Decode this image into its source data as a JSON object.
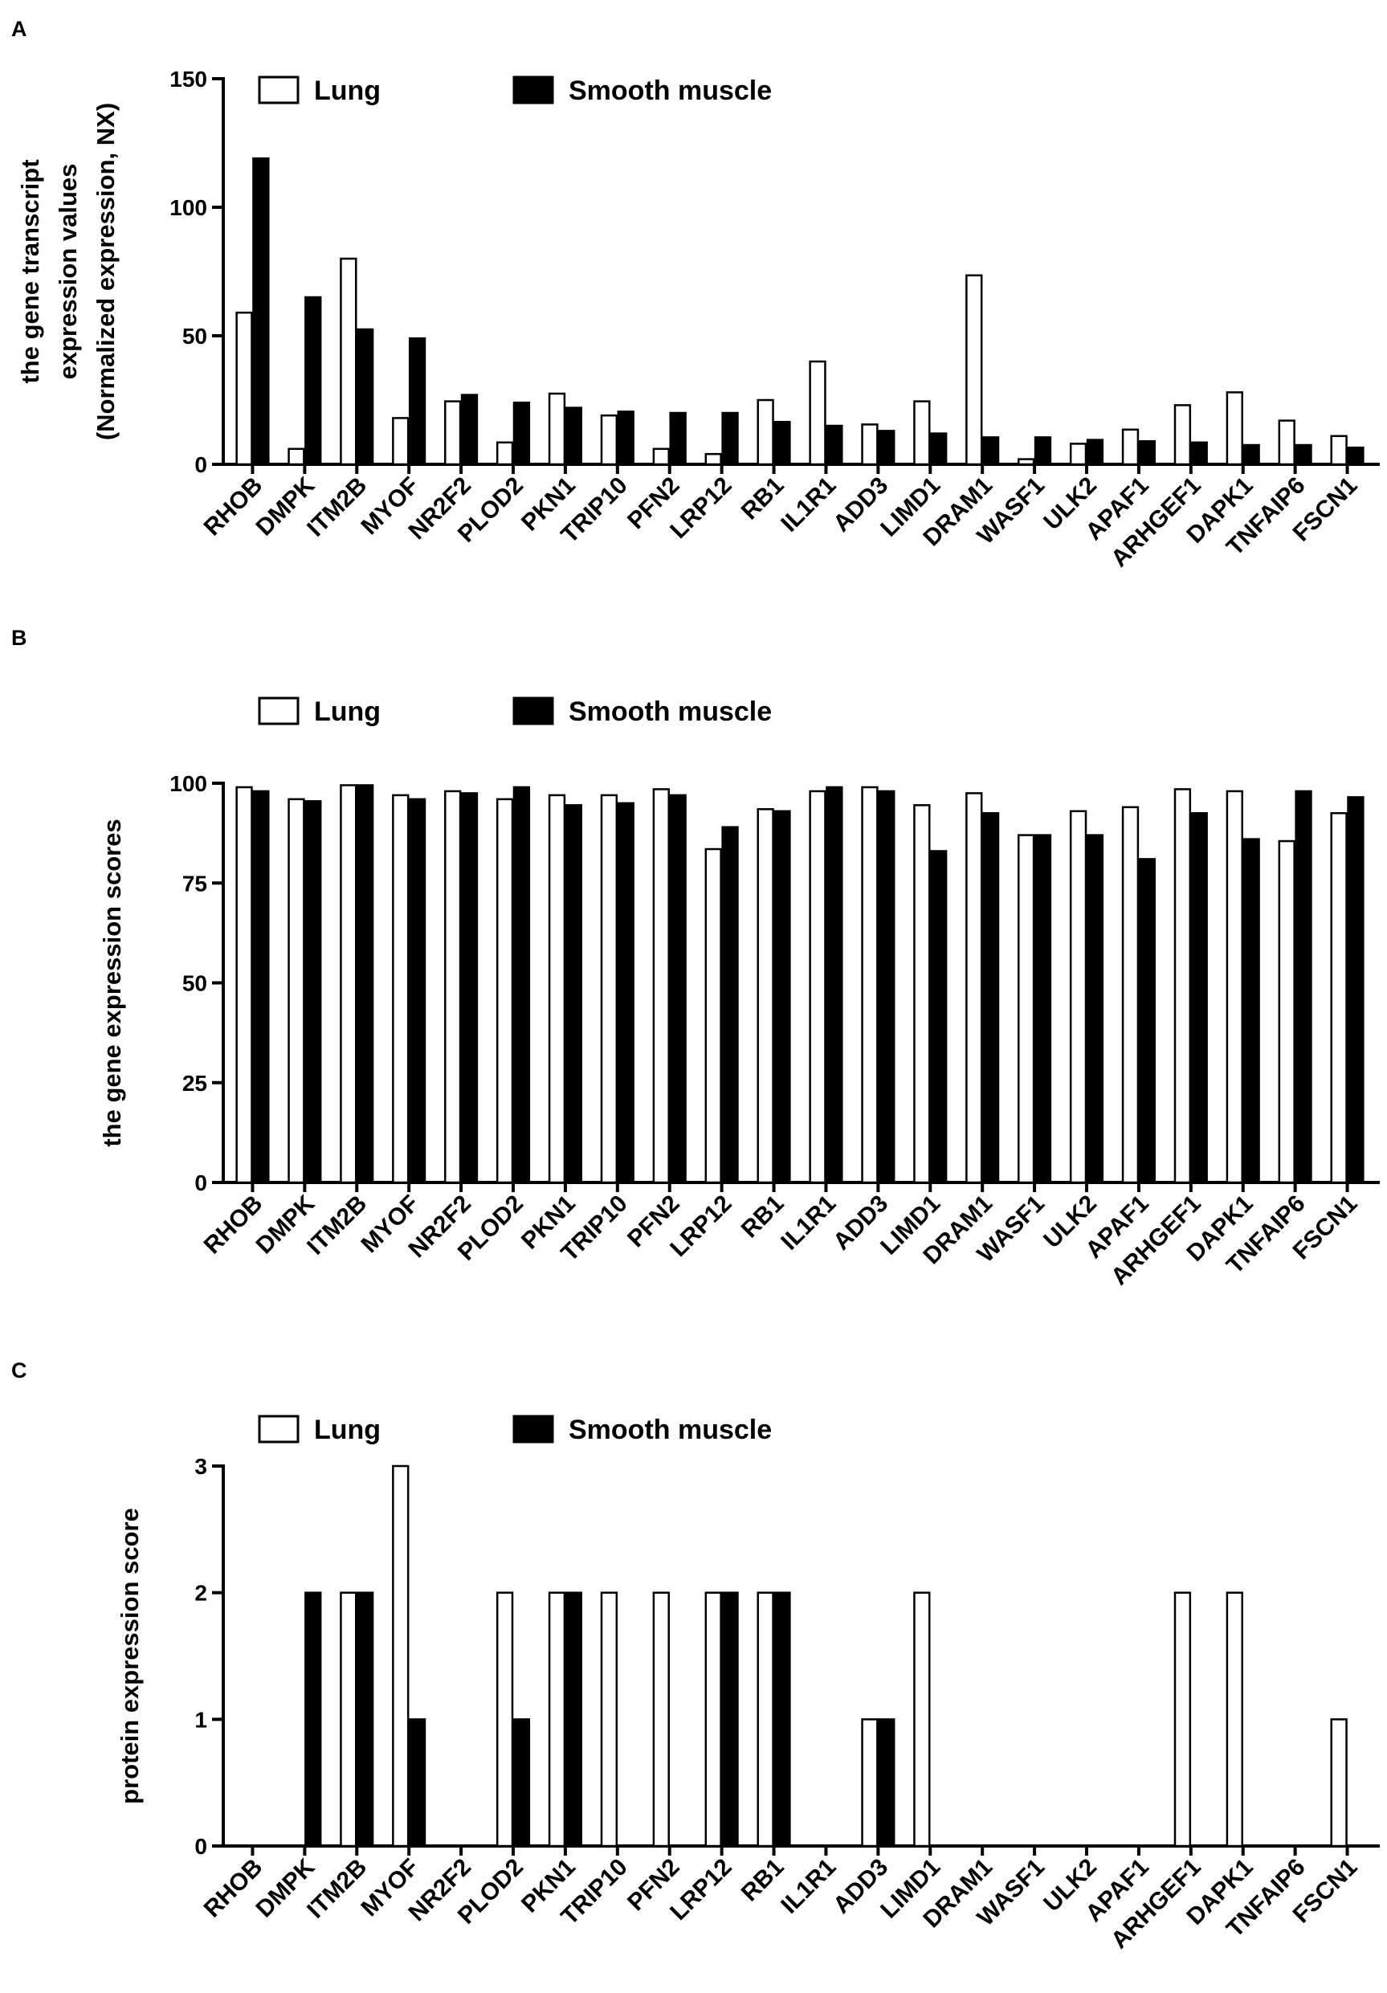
{
  "chart_data": [
    {
      "panel": "A",
      "type": "bar",
      "title": "",
      "ylabel_lines": [
        "the gene transcript",
        "expression values",
        "(Normalized expression, NX)"
      ],
      "xlabel": "",
      "ylim": [
        0,
        150
      ],
      "yticks": [
        0,
        50,
        100,
        150
      ],
      "legend": "top-left",
      "categories": [
        "RHOB",
        "DMPK",
        "ITM2B",
        "MYOF",
        "NR2F2",
        "PLOD2",
        "PKN1",
        "TRIP10",
        "PFN2",
        "LRP12",
        "RB1",
        "IL1R1",
        "ADD3",
        "LIMD1",
        "DRAM1",
        "WASF1",
        "ULK2",
        "APAF1",
        "ARHGEF1",
        "DAPK1",
        "TNFAIP6",
        "FSCN1"
      ],
      "series": [
        {
          "name": "Lung",
          "color": "#ffffff",
          "values": [
            59,
            6,
            80,
            18,
            24.5,
            8.5,
            27.5,
            19,
            6,
            4,
            25,
            40,
            15.5,
            24.5,
            73.5,
            2,
            8,
            13.5,
            23,
            28,
            17,
            11
          ]
        },
        {
          "name": "Smooth muscle",
          "color": "#000000",
          "values": [
            119,
            65,
            52.5,
            49,
            27,
            24,
            22,
            20.5,
            20,
            20,
            16.5,
            15,
            13,
            12,
            10.5,
            10.5,
            9.5,
            9,
            8.5,
            7.5,
            7.5,
            6.5
          ]
        }
      ]
    },
    {
      "panel": "B",
      "type": "bar",
      "title": "",
      "ylabel_lines": [
        "the gene expression scores"
      ],
      "xlabel": "",
      "ylim": [
        0,
        100
      ],
      "yticks": [
        0,
        25,
        50,
        75,
        100
      ],
      "legend": "top-left",
      "categories": [
        "RHOB",
        "DMPK",
        "ITM2B",
        "MYOF",
        "NR2F2",
        "PLOD2",
        "PKN1",
        "TRIP10",
        "PFN2",
        "LRP12",
        "RB1",
        "IL1R1",
        "ADD3",
        "LIMD1",
        "DRAM1",
        "WASF1",
        "ULK2",
        "APAF1",
        "ARHGEF1",
        "DAPK1",
        "TNFAIP6",
        "FSCN1"
      ],
      "series": [
        {
          "name": "Lung",
          "color": "#ffffff",
          "values": [
            99,
            96,
            99.5,
            97,
            98,
            96,
            97,
            97,
            98.5,
            83.5,
            93.5,
            98,
            99,
            94.5,
            97.5,
            87,
            93,
            94,
            98.5,
            98,
            85.5,
            92.5
          ]
        },
        {
          "name": "Smooth muscle",
          "color": "#000000",
          "values": [
            98,
            95.5,
            99.5,
            96,
            97.5,
            99,
            94.5,
            95,
            97,
            89,
            93,
            99,
            98,
            83,
            92.5,
            87,
            87,
            81,
            92.5,
            86,
            98,
            96.5
          ]
        }
      ]
    },
    {
      "panel": "C",
      "type": "bar",
      "title": "",
      "ylabel_lines": [
        "protein expression score"
      ],
      "xlabel": "",
      "ylim": [
        0,
        3
      ],
      "yticks": [
        0,
        1,
        2,
        3
      ],
      "legend": "top-left",
      "categories": [
        "RHOB",
        "DMPK",
        "ITM2B",
        "MYOF",
        "NR2F2",
        "PLOD2",
        "PKN1",
        "TRIP10",
        "PFN2",
        "LRP12",
        "RB1",
        "IL1R1",
        "ADD3",
        "LIMD1",
        "DRAM1",
        "WASF1",
        "ULK2",
        "APAF1",
        "ARHGEF1",
        "DAPK1",
        "TNFAIP6",
        "FSCN1"
      ],
      "series": [
        {
          "name": "Lung",
          "color": "#ffffff",
          "values": [
            0,
            0,
            2,
            3,
            0,
            2,
            2,
            2,
            2,
            2,
            2,
            0,
            1,
            2,
            0,
            0,
            0,
            0,
            2,
            2,
            0,
            1
          ]
        },
        {
          "name": "Smooth muscle",
          "color": "#000000",
          "values": [
            0,
            2,
            2,
            1,
            0,
            1,
            2,
            0,
            0,
            2,
            2,
            0,
            1,
            0,
            0,
            0,
            0,
            0,
            0,
            0,
            0,
            0
          ]
        }
      ]
    }
  ]
}
